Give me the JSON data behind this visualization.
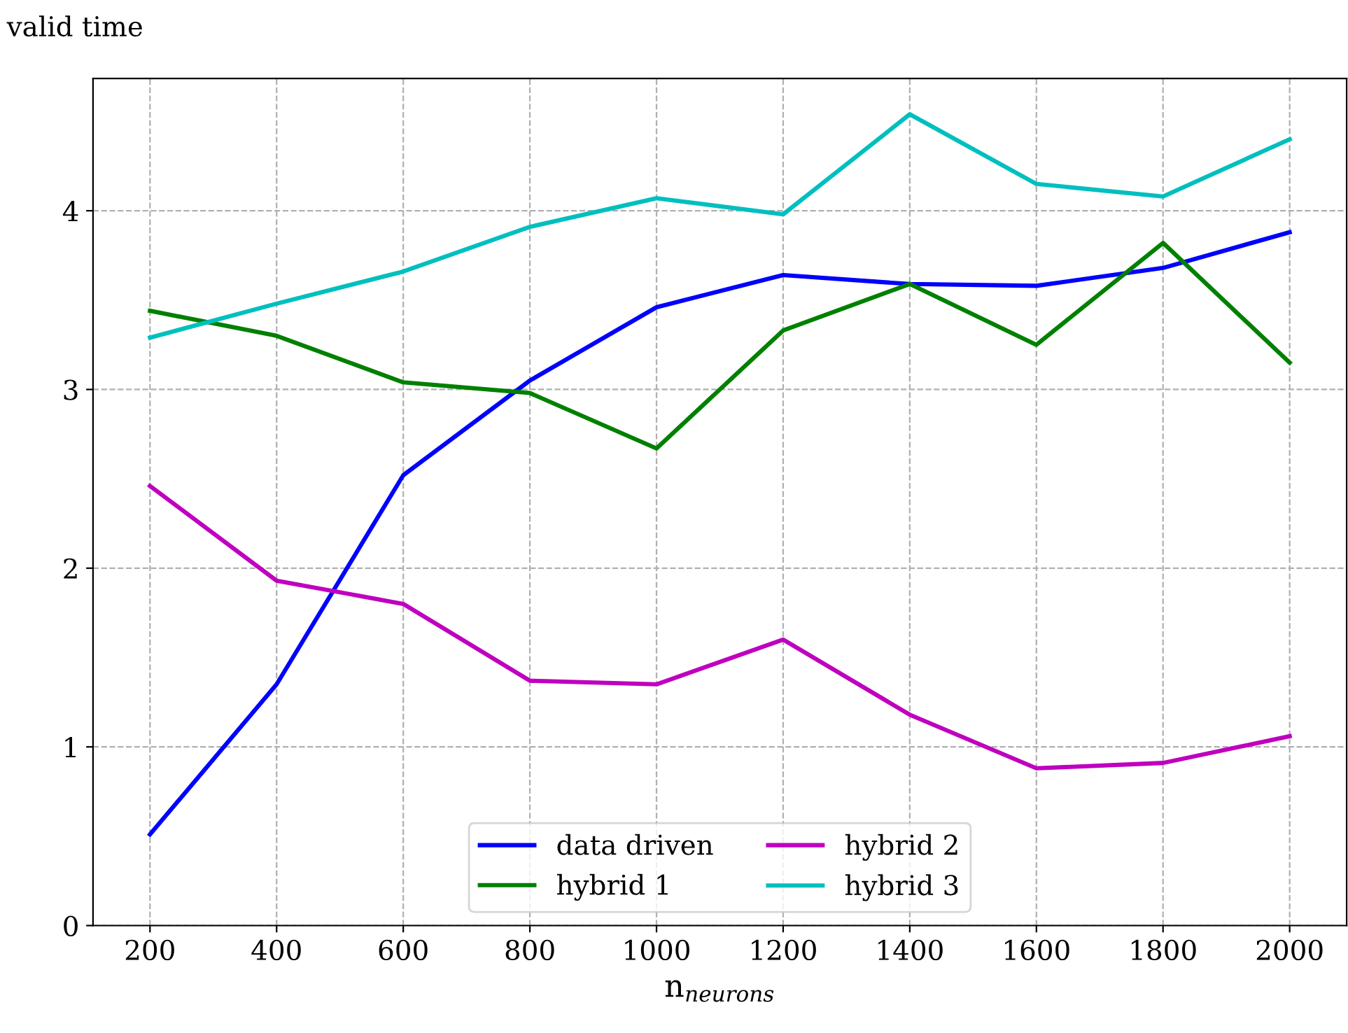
{
  "chart_data": {
    "type": "line",
    "ylabel": "valid time",
    "xlabel": "n$_{neurons}$",
    "x": [
      200,
      400,
      600,
      800,
      1000,
      1200,
      1400,
      1600,
      1800,
      2000
    ],
    "series": [
      {
        "name": "data driven",
        "color": "#0000ff",
        "values": [
          0.51,
          1.35,
          2.52,
          3.05,
          3.46,
          3.64,
          3.59,
          3.58,
          3.68,
          3.88
        ]
      },
      {
        "name": "hybrid 1",
        "color": "#008000",
        "values": [
          3.44,
          3.3,
          3.04,
          2.98,
          2.67,
          3.33,
          3.59,
          3.25,
          3.82,
          3.15
        ]
      },
      {
        "name": "hybrid 2",
        "color": "#bf00bf",
        "values": [
          2.46,
          1.93,
          1.8,
          1.37,
          1.35,
          1.6,
          1.18,
          0.88,
          0.91,
          1.06
        ]
      },
      {
        "name": "hybrid 3",
        "color": "#00bfbf",
        "values": [
          3.29,
          3.48,
          3.66,
          3.91,
          4.07,
          3.98,
          4.54,
          4.15,
          4.08,
          4.4
        ]
      }
    ],
    "xlim": [
      110,
      2090
    ],
    "xticks": [
      200,
      400,
      600,
      800,
      1000,
      1200,
      1400,
      1600,
      1800,
      2000
    ],
    "ylim": [
      0,
      4.74
    ],
    "yticks": [
      0,
      1,
      2,
      3,
      4
    ],
    "grid": true,
    "legend": "bottom",
    "marker": "none",
    "line_style": "solid"
  }
}
